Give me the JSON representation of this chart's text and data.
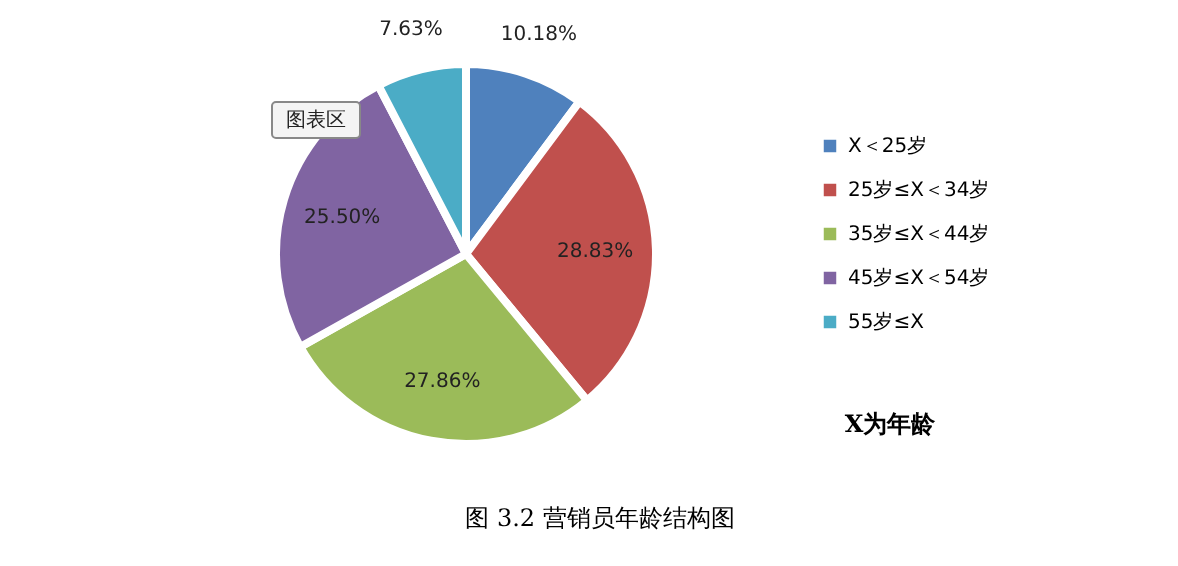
{
  "chart_data": {
    "type": "pie",
    "categories": [
      "X＜25岁",
      "25岁≤X＜34岁",
      "35岁≤X＜44岁",
      "45岁≤X＜54岁",
      "55岁≤X"
    ],
    "values": [
      10.18,
      28.83,
      27.86,
      25.5,
      7.63
    ],
    "value_labels": [
      "10.18%",
      "28.83%",
      "27.86%",
      "25.50%",
      "7.63%"
    ],
    "colors": [
      "#4f81bd",
      "#c0504d",
      "#9bbb59",
      "#8064a2",
      "#4bacc6"
    ],
    "legend": "right",
    "annotations": [
      "图表区",
      "X为年龄",
      "图 3.2   营销员年龄结构图"
    ]
  }
}
